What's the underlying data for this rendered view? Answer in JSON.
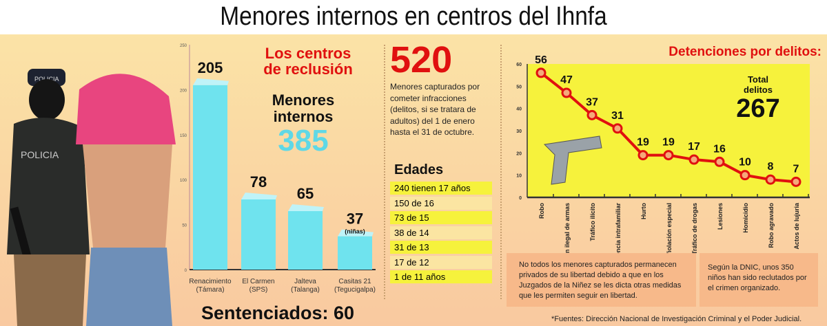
{
  "title": "Menores internos en centros del Ihnfa",
  "photo": {
    "cap_text": "POLICIA",
    "vest_text": "POLICIA"
  },
  "centros": {
    "heading1": "Los centros",
    "heading2": "de reclusión",
    "menores_label1": "Menores",
    "menores_label2": "internos",
    "menores_total": "385",
    "sentenciados": "Sentenciados: 60"
  },
  "capturados": {
    "number": "520",
    "text": "Menores capturados por cometer infracciones (delitos, si se tratara de adultos) del 1 de enero hasta el 31 de octubre."
  },
  "edades": {
    "heading": "Edades",
    "rows": [
      {
        "text": "240 tienen 17 años",
        "hl": true
      },
      {
        "text": "150 de 16",
        "hl": false
      },
      {
        "text": "73 de 15",
        "hl": true
      },
      {
        "text": "38 de 14",
        "hl": false
      },
      {
        "text": "31 de 13",
        "hl": true
      },
      {
        "text": "17 de 12",
        "hl": false
      },
      {
        "text": "1 de 11 años",
        "hl": true
      }
    ]
  },
  "delitos": {
    "total_label1": "Total",
    "total_label2": "delitos",
    "total": "267"
  },
  "notes": {
    "left": "No todos los menores capturados permanecen privados de su libertad debido a que en los Juzgados de la Niñez se les dicta otras medidas que les permiten seguir en libertad.",
    "right": "Según la DNIC, unos 350 niños han sido reclutados por el crimen organizado."
  },
  "footnote": "*Fuentes: Dirección Nacional de Investigación Criminal y el Poder Judicial.",
  "colors": {
    "bar": "#6fe3ee",
    "line": "#e0100f",
    "title_red": "#e0100f",
    "plot_bg": "#f6f23c"
  },
  "chart_data": [
    {
      "type": "bar",
      "title": "Los centros de reclusión",
      "categories": [
        "Renacimiento (Támara)",
        "El Carmen (SPS)",
        "Jalteva (Talanga)",
        "Casitas 21 (Tegucigalpa)"
      ],
      "values": [
        205,
        78,
        65,
        37
      ],
      "labels": [
        "205",
        "78",
        "65",
        "37"
      ],
      "sublabel_last": "(niñas)",
      "yticks": [
        0,
        50,
        100,
        150,
        200,
        250
      ],
      "ylim": [
        0,
        250
      ]
    },
    {
      "type": "line",
      "title": "Detenciones por delitos:",
      "categories": [
        "Robo",
        "Portación ilegal de armas",
        "Tráfico ilícito",
        "Violencia intrafamiliar",
        "Hurto",
        "Violación especial",
        "Tráfico de drogas",
        "Lesiones",
        "Homicidio",
        "Robo agravado",
        "Actos de lujuria"
      ],
      "values": [
        56,
        47,
        37,
        31,
        19,
        19,
        17,
        16,
        10,
        8,
        7
      ],
      "yticks": [
        0,
        10,
        20,
        30,
        40,
        50,
        60
      ],
      "ylim": [
        0,
        60
      ],
      "grid": false
    }
  ]
}
